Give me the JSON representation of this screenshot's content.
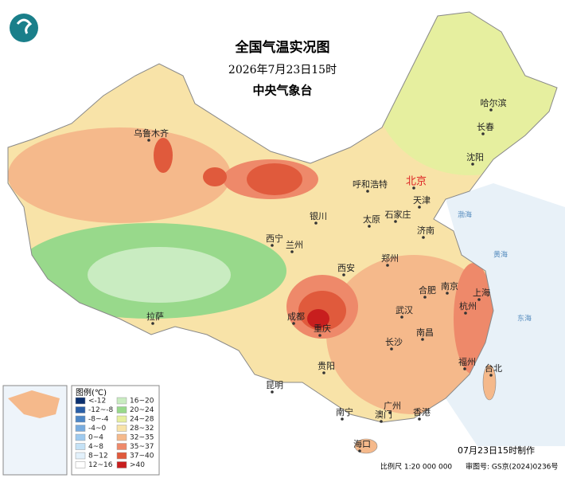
{
  "header": {
    "title": "全国气温实况图",
    "time": "2026年7月23日15时",
    "agency": "中央气象台"
  },
  "cities": [
    "乌鲁木齐",
    "哈尔滨",
    "长春",
    "沈阳",
    "呼和浩特",
    "北京",
    "天津",
    "银川",
    "太原",
    "石家庄",
    "济南",
    "西宁",
    "兰州",
    "郑州",
    "西安",
    "合肥",
    "南京",
    "上海",
    "拉萨",
    "成都",
    "武汉",
    "杭州",
    "重庆",
    "南昌",
    "长沙",
    "福州",
    "台北",
    "贵阳",
    "昆明",
    "南宁",
    "广州",
    "澳门",
    "香港",
    "海口"
  ],
  "seas": [
    "渤海",
    "黄海",
    "东海"
  ],
  "legend": {
    "title": "图例(℃)",
    "items": [
      {
        "label": "<-12",
        "color": "#0b2f6e"
      },
      {
        "label": "-12~-8",
        "color": "#2a5ea6"
      },
      {
        "label": "-8~-4",
        "color": "#4d86c6"
      },
      {
        "label": "-4~0",
        "color": "#78acdf"
      },
      {
        "label": "0~4",
        "color": "#9ecaef"
      },
      {
        "label": "4~8",
        "color": "#c5e2f6"
      },
      {
        "label": "8~12",
        "color": "#e3f1fb"
      },
      {
        "label": "12~16",
        "color": "#ffffff"
      },
      {
        "label": "16~20",
        "color": "#c9ecc1"
      },
      {
        "label": "20~24",
        "color": "#98d98b"
      },
      {
        "label": "24~28",
        "color": "#e6ef9f"
      },
      {
        "label": "28~32",
        "color": "#f8e3a8"
      },
      {
        "label": "32~35",
        "color": "#f5b98b"
      },
      {
        "label": "35~37",
        "color": "#ee896a"
      },
      {
        "label": "37~40",
        "color": "#e05a3c"
      },
      {
        "label": ">40",
        "color": "#c81e1e"
      }
    ]
  },
  "footer": {
    "made": "07月23日15时制作",
    "scale": "比例尺 1:20 000 000",
    "approval": "审图号: GS京(2024)0236号"
  }
}
